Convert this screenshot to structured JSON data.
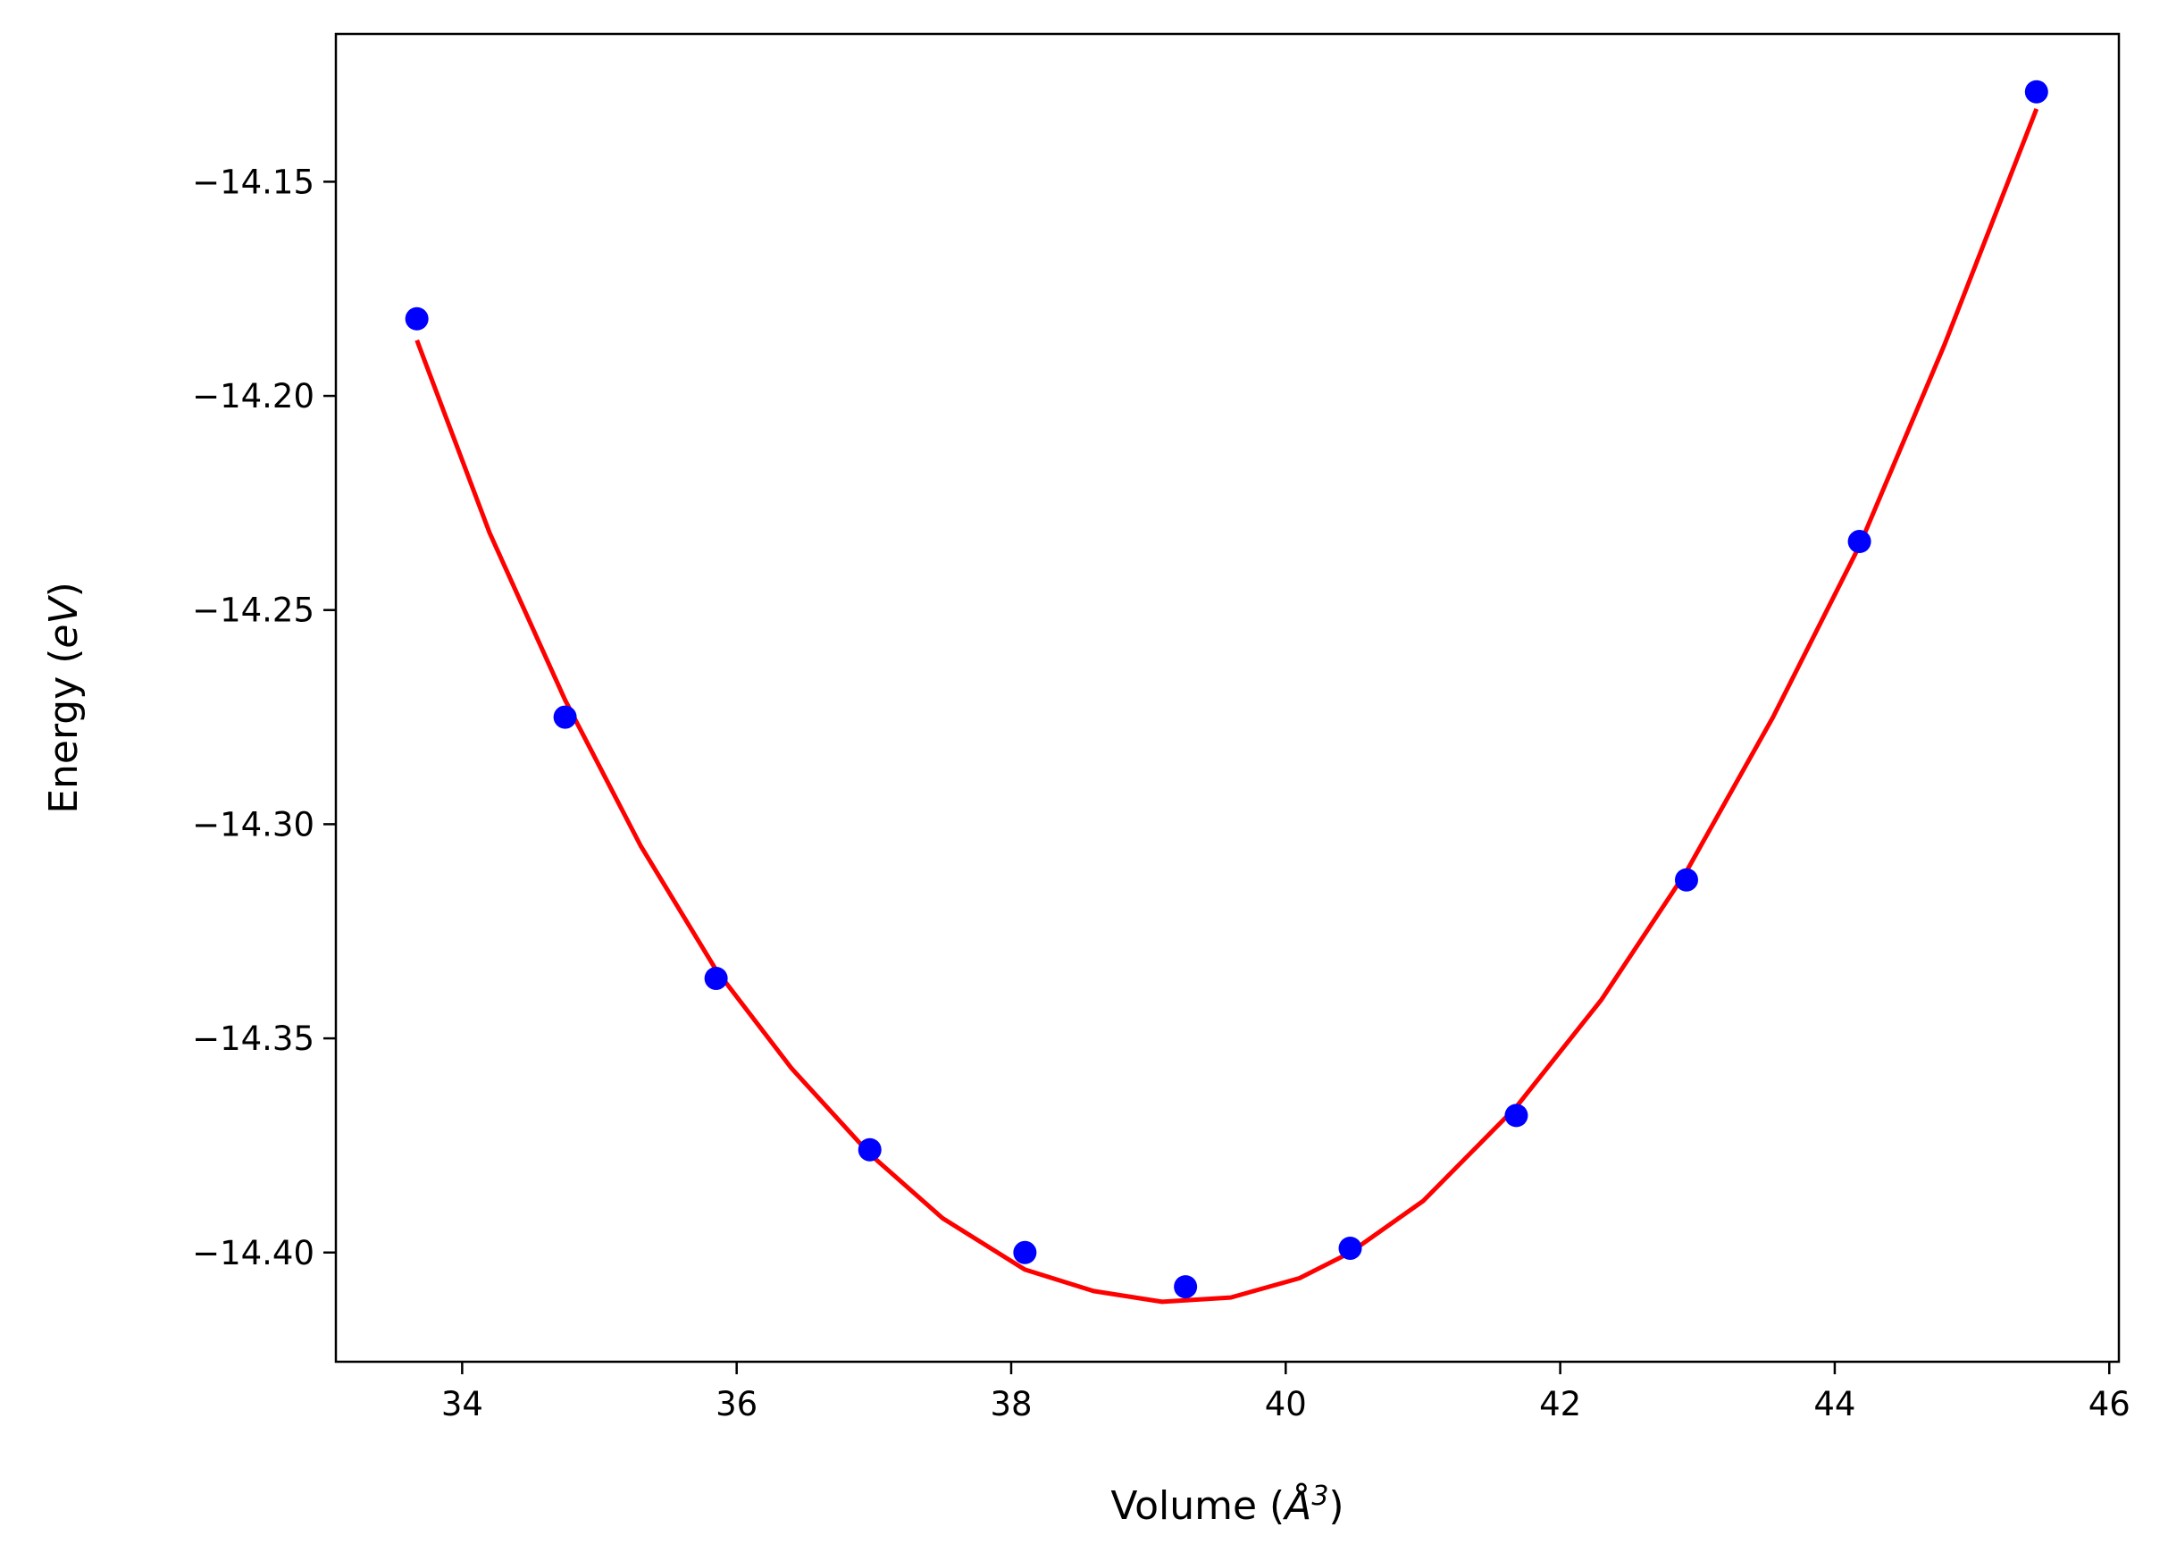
{
  "chart_data": {
    "type": "scatter",
    "xlabel": "Volume",
    "xlabel_unit_pre": "(",
    "xlabel_unit_sym": "Å",
    "xlabel_unit_sup": "3",
    "xlabel_unit_post": ")",
    "ylabel": "Energy",
    "ylabel_unit_pre": "(",
    "ylabel_unit_var": "eV",
    "ylabel_unit_post": ")",
    "xlim": [
      33.08,
      46.07
    ],
    "ylim": [
      -14.4255,
      -14.1155
    ],
    "x_ticks": [
      34,
      36,
      38,
      40,
      42,
      44,
      46
    ],
    "x_tick_labels": [
      "34",
      "36",
      "38",
      "40",
      "42",
      "44",
      "46"
    ],
    "y_ticks": [
      -14.15,
      -14.2,
      -14.25,
      -14.3,
      -14.35,
      -14.4
    ],
    "y_tick_labels": [
      "−14.15",
      "−14.20",
      "−14.25",
      "−14.30",
      "−14.35",
      "−14.40"
    ],
    "grid": false,
    "series": [
      {
        "kind": "points",
        "color": "#0000ff",
        "x": [
          33.67,
          34.75,
          35.85,
          36.97,
          38.1,
          39.27,
          40.47,
          41.68,
          42.92,
          44.18,
          45.47
        ],
        "y": [
          -14.182,
          -14.275,
          -14.336,
          -14.376,
          -14.4,
          -14.408,
          -14.399,
          -14.368,
          -14.313,
          -14.234,
          -14.129
        ]
      },
      {
        "kind": "fit-line",
        "color": "#ff0000",
        "x": [
          33.67,
          34.2,
          34.75,
          35.3,
          35.85,
          36.4,
          36.97,
          37.5,
          38.1,
          38.6,
          39.1,
          39.6,
          40.1,
          40.47,
          41.0,
          41.68,
          42.3,
          42.92,
          43.55,
          44.18,
          44.8,
          45.47
        ],
        "y": [
          -14.187,
          -14.232,
          -14.271,
          -14.305,
          -14.334,
          -14.357,
          -14.377,
          -14.392,
          -14.404,
          -14.409,
          -14.4115,
          -14.4105,
          -14.406,
          -14.4,
          -14.388,
          -14.366,
          -14.341,
          -14.311,
          -14.275,
          -14.235,
          -14.188,
          -14.133
        ]
      }
    ]
  }
}
